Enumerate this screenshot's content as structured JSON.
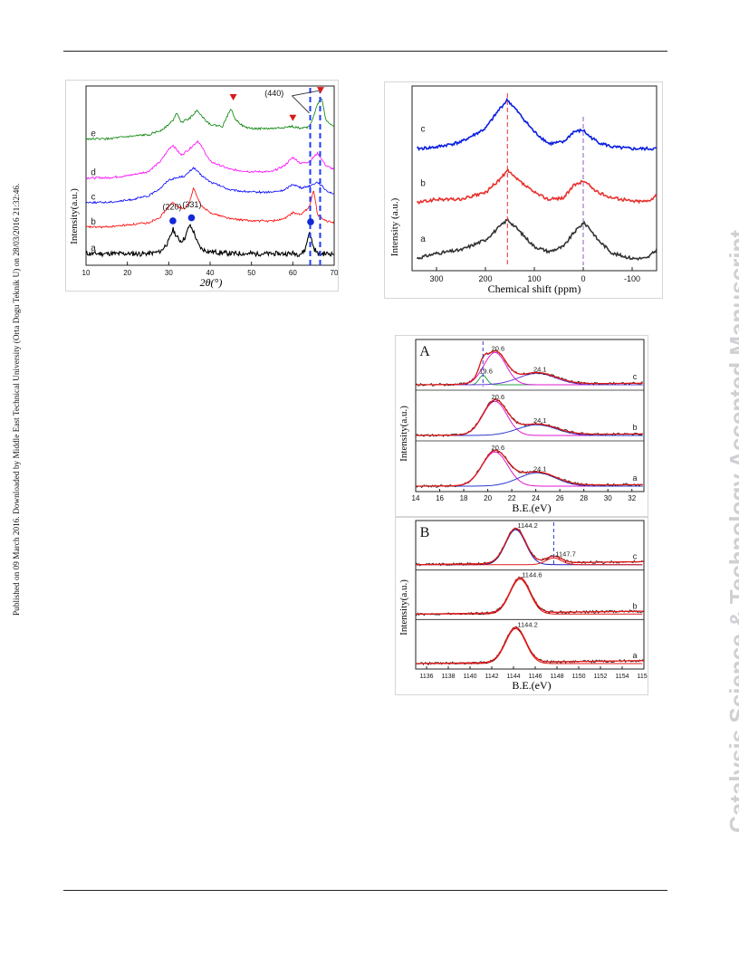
{
  "sidebar_text": "Published on 09 March 2016. Downloaded by Middle East Technical University (Orta Dogu Teknik U) on 28/03/2016 21:32:46.",
  "watermark": "Catalysis Science & Technology Accepted Manuscript",
  "chart_data": [
    {
      "type": "line",
      "xlabel": "2θ(°)",
      "ylabel": "Intensity(a.u.)",
      "xlim": [
        10,
        70
      ],
      "xticks": [
        "10",
        "20",
        "30",
        "40",
        "50",
        "60",
        "70"
      ],
      "series": [
        {
          "name": "a",
          "color": "#000000",
          "x": [
            10,
            15,
            20,
            25,
            28,
            30,
            31,
            32,
            33,
            34,
            35,
            36,
            37,
            38,
            40,
            45,
            50,
            55,
            60,
            62,
            63,
            64,
            65,
            66,
            68,
            70
          ],
          "y": [
            0.3,
            0.3,
            0.3,
            0.3,
            0.4,
            0.9,
            1.5,
            1.1,
            0.9,
            1.1,
            1.7,
            1.4,
            0.8,
            0.5,
            0.4,
            0.3,
            0.3,
            0.3,
            0.3,
            0.3,
            0.5,
            1.4,
            0.6,
            0.3,
            0.3,
            0.3
          ]
        },
        {
          "name": "b",
          "color": "#ff0000",
          "x": [
            10,
            15,
            20,
            25,
            28,
            30,
            31,
            32,
            34,
            35,
            36,
            37,
            38,
            40,
            45,
            50,
            55,
            58,
            60,
            62,
            64,
            65,
            66,
            68,
            70
          ],
          "y": [
            1.6,
            1.6,
            1.7,
            1.8,
            2.1,
            2.6,
            2.8,
            2.6,
            2.5,
            2.8,
            3.5,
            3.0,
            2.6,
            2.3,
            2.0,
            1.9,
            1.9,
            2.0,
            2.3,
            2.2,
            2.6,
            3.4,
            2.2,
            1.9,
            1.8
          ]
        },
        {
          "name": "c",
          "color": "#0000ff",
          "x": [
            10,
            15,
            20,
            25,
            28,
            30,
            32,
            34,
            36,
            38,
            40,
            45,
            50,
            55,
            58,
            60,
            62,
            64,
            66,
            68,
            70
          ],
          "y": [
            2.8,
            2.8,
            2.9,
            3.1,
            3.5,
            3.9,
            4.0,
            4.1,
            4.5,
            4.1,
            3.8,
            3.4,
            3.3,
            3.3,
            3.4,
            3.7,
            3.5,
            3.6,
            3.8,
            3.4,
            3.2
          ]
        },
        {
          "name": "d",
          "color": "#ff00ff",
          "x": [
            10,
            15,
            20,
            25,
            28,
            30,
            31,
            33,
            35,
            37,
            38,
            40,
            45,
            50,
            55,
            58,
            60,
            62,
            64,
            66,
            68,
            70
          ],
          "y": [
            4.0,
            4.0,
            4.1,
            4.3,
            4.8,
            5.4,
            5.6,
            5.1,
            5.4,
            5.8,
            5.5,
            4.8,
            4.4,
            4.3,
            4.3,
            4.6,
            5.0,
            4.7,
            4.8,
            5.2,
            4.6,
            4.4
          ]
        },
        {
          "name": "e",
          "color": "#008000",
          "x": [
            10,
            15,
            20,
            25,
            28,
            30,
            31,
            32,
            33,
            35,
            37,
            38,
            40,
            43,
            45,
            46,
            48,
            50,
            55,
            60,
            62,
            64,
            65,
            66,
            67,
            68,
            70
          ],
          "y": [
            5.9,
            5.9,
            6.0,
            6.1,
            6.3,
            6.6,
            6.8,
            7.2,
            6.7,
            6.9,
            7.3,
            7.0,
            6.6,
            6.5,
            7.4,
            6.9,
            6.5,
            6.4,
            6.4,
            6.5,
            6.4,
            6.5,
            7.0,
            7.6,
            7.9,
            6.8,
            6.5
          ]
        }
      ],
      "annotations": [
        "(220)",
        "(331)",
        "(440)"
      ]
    },
    {
      "type": "line",
      "xlabel": "Chemical shift (ppm)",
      "ylabel": "Intensity (a.u.)",
      "xlim": [
        350,
        -150
      ],
      "xticks": [
        "300",
        "200",
        "100",
        "0",
        "-100"
      ],
      "series": [
        {
          "name": "a",
          "color": "#333333",
          "x": [
            340,
            300,
            250,
            200,
            170,
            155,
            140,
            100,
            70,
            40,
            20,
            0,
            -10,
            -30,
            -60,
            -100,
            -130,
            -150
          ],
          "y": [
            0.15,
            0.3,
            0.4,
            0.7,
            1.1,
            1.3,
            1.1,
            0.5,
            0.35,
            0.5,
            0.9,
            1.2,
            1.1,
            0.7,
            0.3,
            0.15,
            0.15,
            0.4
          ]
        },
        {
          "name": "b",
          "color": "#e8312e",
          "x": [
            340,
            300,
            250,
            200,
            170,
            155,
            140,
            100,
            70,
            40,
            20,
            0,
            -10,
            -30,
            -60,
            -100,
            -130,
            -150
          ],
          "y": [
            1.8,
            1.9,
            1.9,
            2.1,
            2.5,
            2.75,
            2.55,
            2.1,
            1.9,
            1.95,
            2.3,
            2.45,
            2.35,
            2.1,
            1.95,
            1.85,
            1.85,
            2.0
          ]
        },
        {
          "name": "c",
          "color": "#0a1ee0",
          "x": [
            340,
            300,
            250,
            200,
            170,
            155,
            140,
            100,
            70,
            40,
            20,
            0,
            -10,
            -30,
            -60,
            -100,
            -130,
            -150
          ],
          "y": [
            3.4,
            3.45,
            3.6,
            4.0,
            4.6,
            4.85,
            4.6,
            3.9,
            3.55,
            3.6,
            3.9,
            3.95,
            3.8,
            3.6,
            3.45,
            3.4,
            3.4,
            3.4
          ]
        }
      ]
    },
    {
      "type": "line",
      "panel": "A",
      "xlabel": "B.E.(eV)",
      "ylabel": "Intensity(a.u.)",
      "xlim": [
        14,
        33
      ],
      "xticks": [
        "14",
        "16",
        "18",
        "20",
        "22",
        "24",
        "26",
        "28",
        "30",
        "32"
      ],
      "subpanels": [
        "c",
        "b",
        "a"
      ],
      "peak_labels": {
        "c": [
          "19.6",
          "20.6",
          "24.1"
        ],
        "b": [
          "20.6",
          "24.1"
        ],
        "a": [
          "20.6",
          "24.1"
        ]
      }
    },
    {
      "type": "line",
      "panel": "B",
      "xlabel": "B.E.(eV)",
      "ylabel": "Intensity(a.u.)",
      "xlim": [
        1135,
        1156
      ],
      "xticks": [
        "1136",
        "1138",
        "1140",
        "1142",
        "1144",
        "1146",
        "1148",
        "1150",
        "1152",
        "1154",
        "1156"
      ],
      "subpanels": [
        "c",
        "b",
        "a"
      ],
      "peak_labels": {
        "c": [
          "1144.2",
          "1147.7"
        ],
        "b": [
          "1144.6"
        ],
        "a": [
          "1144.2"
        ]
      }
    }
  ]
}
